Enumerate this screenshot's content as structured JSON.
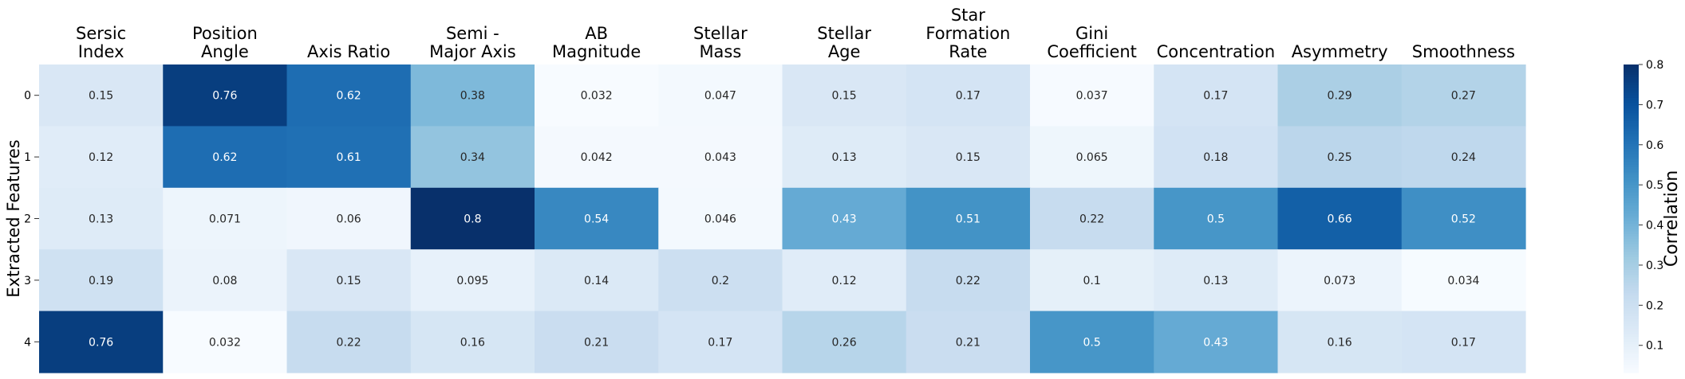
{
  "chart_data": {
    "type": "heatmap",
    "title": "",
    "xlabel": "",
    "ylabel": "Extracted Features",
    "columns": [
      [
        "Sersic",
        "Index"
      ],
      [
        "Position",
        "Angle"
      ],
      [
        "Axis Ratio"
      ],
      [
        "Semi -",
        "Major Axis"
      ],
      [
        "AB",
        "Magnitude"
      ],
      [
        "Stellar",
        "Mass"
      ],
      [
        "Stellar",
        "Age"
      ],
      [
        "Star",
        "Formation",
        "Rate"
      ],
      [
        "Gini",
        "Coefficient"
      ],
      [
        "Concentration"
      ],
      [
        "Asymmetry"
      ],
      [
        "Smoothness"
      ]
    ],
    "rows": [
      "0",
      "1",
      "2",
      "3",
      "4"
    ],
    "values": [
      [
        0.15,
        0.76,
        0.62,
        0.38,
        0.032,
        0.047,
        0.15,
        0.17,
        0.037,
        0.17,
        0.29,
        0.27
      ],
      [
        0.12,
        0.62,
        0.61,
        0.34,
        0.042,
        0.043,
        0.13,
        0.15,
        0.065,
        0.18,
        0.25,
        0.24
      ],
      [
        0.13,
        0.071,
        0.06,
        0.8,
        0.54,
        0.046,
        0.43,
        0.51,
        0.22,
        0.5,
        0.66,
        0.52
      ],
      [
        0.19,
        0.08,
        0.15,
        0.095,
        0.14,
        0.2,
        0.12,
        0.22,
        0.1,
        0.13,
        0.073,
        0.034
      ],
      [
        0.76,
        0.032,
        0.22,
        0.16,
        0.21,
        0.17,
        0.26,
        0.21,
        0.5,
        0.43,
        0.16,
        0.17
      ]
    ],
    "colormap": "Blues",
    "vmin": 0.032,
    "vmax": 0.8,
    "colorbar": {
      "label": "Correlation",
      "ticks": [
        0.1,
        0.2,
        0.3,
        0.4,
        0.5,
        0.6,
        0.7,
        0.8
      ]
    },
    "annotated": true
  }
}
